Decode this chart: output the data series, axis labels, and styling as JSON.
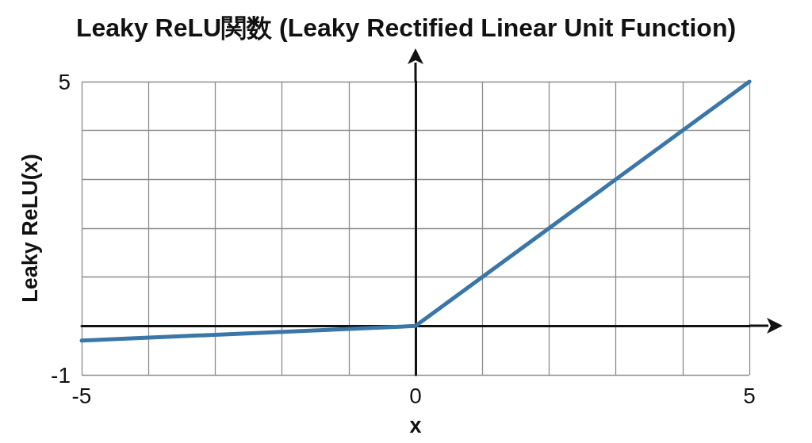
{
  "chart_data": {
    "type": "line",
    "title": "Leaky ReLU関数 (Leaky Rectified Linear Unit Function)",
    "xlabel": "x",
    "ylabel": "Leaky ReLU(x)",
    "x": [
      -5,
      0,
      5
    ],
    "series": [
      {
        "color": "#3a76a8",
        "values": [
          -0.3,
          0,
          5
        ]
      }
    ],
    "xlim": [
      -5,
      5
    ],
    "ylim": [
      -1,
      5
    ],
    "xticks": [
      -5,
      {
        "value": -4,
        "label": null
      },
      {
        "value": -3,
        "label": null
      },
      {
        "value": -2,
        "label": null
      },
      {
        "value": -1,
        "label": null
      },
      0,
      {
        "value": 1,
        "label": null
      },
      {
        "value": 2,
        "label": null
      },
      {
        "value": 3,
        "label": null
      },
      {
        "value": 4,
        "label": null
      },
      5
    ],
    "yticks": [
      -1,
      {
        "value": 0,
        "label": null
      },
      {
        "value": 1,
        "label": null
      },
      {
        "value": 2,
        "label": null
      },
      {
        "value": 3,
        "label": null
      },
      {
        "value": 4,
        "label": null
      },
      5
    ],
    "grid": true
  }
}
